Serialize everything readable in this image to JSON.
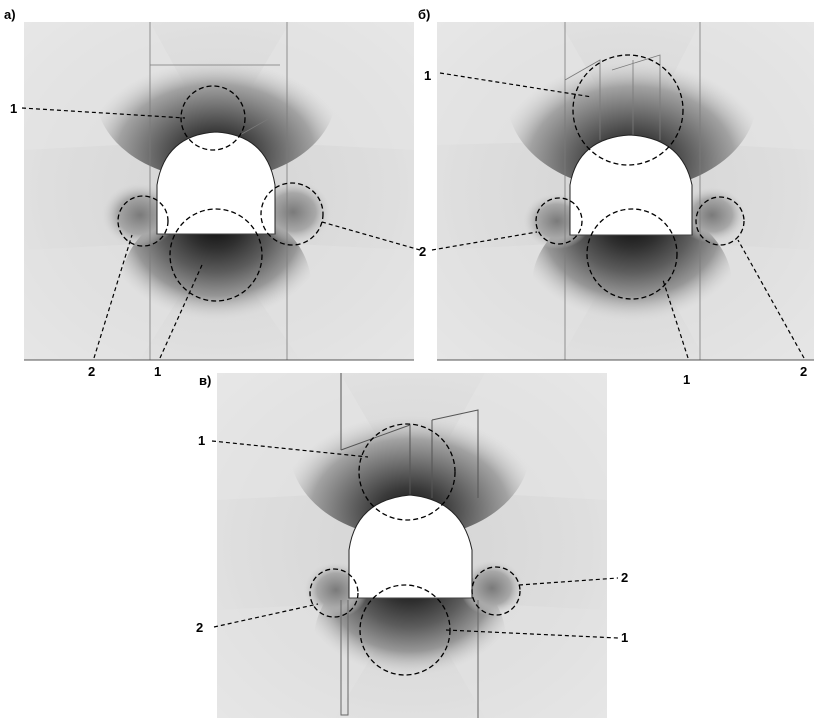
{
  "panels": [
    {
      "id": "a",
      "letter": "а)"
    },
    {
      "id": "b",
      "letter": "б)"
    },
    {
      "id": "v",
      "letter": "в)"
    }
  ],
  "callouts": {
    "a": {
      "top_1": "1",
      "bottom_1": "1",
      "bottom_2": "2"
    },
    "b": {
      "top_1": "1",
      "mid_2": "2",
      "bottom_1": "1",
      "bottom_2": "2"
    },
    "v": {
      "top_1": "1",
      "right_2": "2",
      "left_2": "2",
      "right_1": "1"
    }
  },
  "colors": {
    "page": "#ffffff",
    "contour_light": "#e8e8e8",
    "contour_mid": "#9a9a9a",
    "contour_dark": "#1a1a1a",
    "cavity": "#ffffff",
    "leaders": "#000000"
  }
}
